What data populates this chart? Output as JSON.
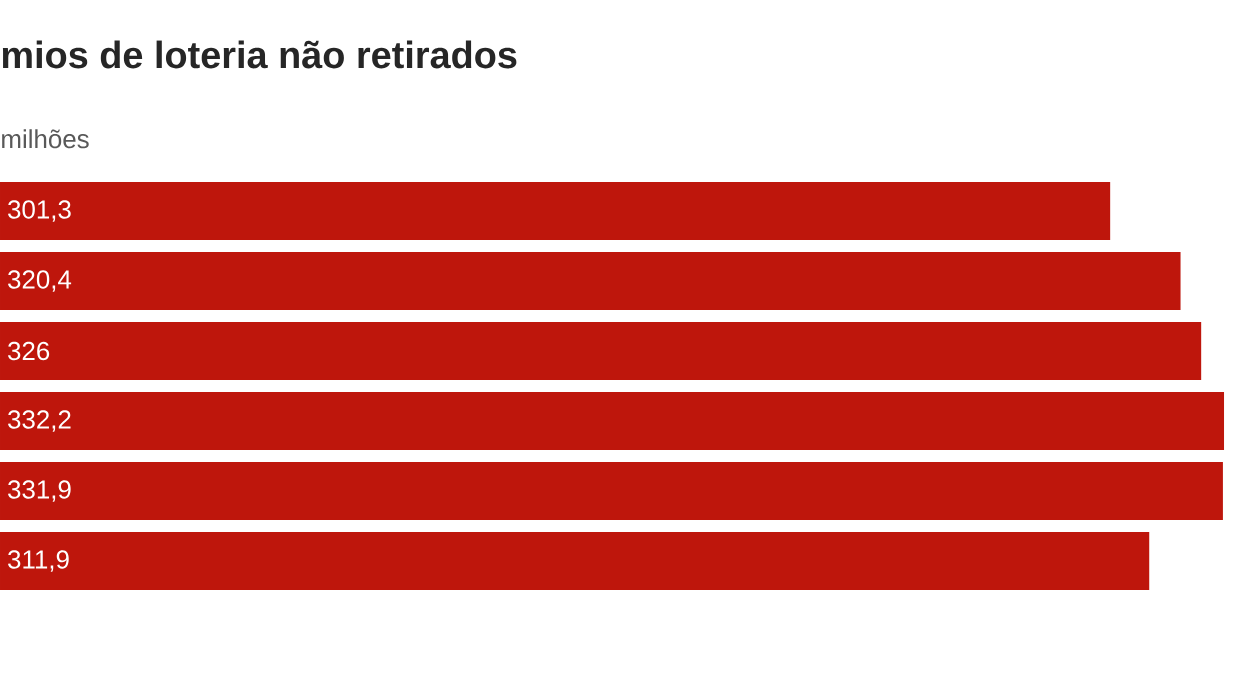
{
  "chart_data": {
    "type": "bar",
    "orientation": "horizontal",
    "title": "mios de loteria não retirados",
    "subtitle": "milhões",
    "categories": [
      null,
      null,
      null,
      null,
      null,
      null
    ],
    "values": [
      301.3,
      320.4,
      326,
      332.2,
      331.9,
      311.9
    ],
    "value_labels": [
      "301,3",
      "320,4",
      "326",
      "332,2",
      "331,9",
      "311,9"
    ],
    "color": "#be160c"
  }
}
